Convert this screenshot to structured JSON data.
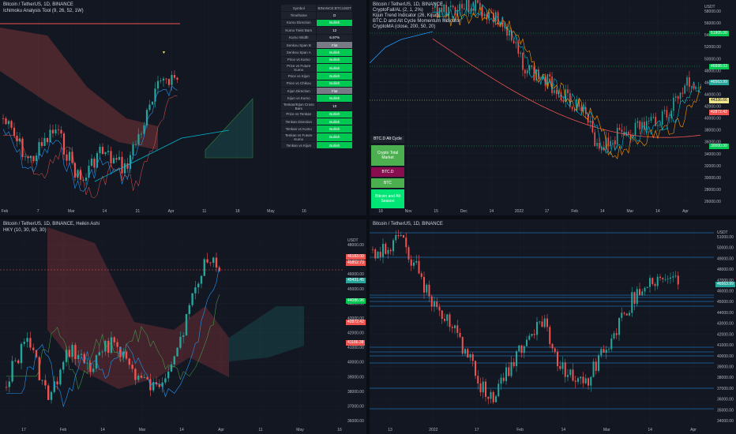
{
  "colors": {
    "up": "#26a69a",
    "down": "#ef5350",
    "bg": "#131722",
    "grid": "#1e222d",
    "text": "#b2b5be",
    "green": "#00c853",
    "red": "#f23645",
    "gray": "#787b86",
    "blue": "#2962ff",
    "cyan": "#00bcd4"
  },
  "panes": {
    "tl": {
      "title_lines": [
        "Bitcoin / TetherUS, 1D, BINANCE",
        "Ichimoku Analysis Tool (9, 26, 52, 1W)"
      ],
      "x_labels": [
        "Feb",
        "7",
        "Mar",
        "14",
        "21",
        "Apr",
        "11",
        "18",
        "May",
        "16"
      ],
      "table": {
        "header": [
          "Symbol",
          "BINANCE:BTCUSDT"
        ],
        "rows": [
          {
            "k": "Timeframe",
            "v": "D",
            "c": "#1e222d"
          },
          {
            "k": "Kumo Direction",
            "v": "Bullish",
            "c": "#00c853"
          },
          {
            "k": "Kumo Twist Bars",
            "v": "12",
            "c": "#1e222d"
          },
          {
            "k": "Kumo Width",
            "v": "6.97%",
            "c": "#1e222d"
          },
          {
            "k": "Senkou Span B",
            "v": "Flat",
            "c": "#787b86"
          },
          {
            "k": "Senkou Span A",
            "v": "Bullish",
            "c": "#00c853"
          },
          {
            "k": "Price vs Kumo",
            "v": "Bullish",
            "c": "#00c853"
          },
          {
            "k": "Price vs Future Kumo",
            "v": "Bullish",
            "c": "#00c853"
          },
          {
            "k": "Price vs Kijun",
            "v": "Bullish",
            "c": "#00c853"
          },
          {
            "k": "Price vs Chikou",
            "v": "Bullish",
            "c": "#00c853"
          },
          {
            "k": "Kijun Direction",
            "v": "Flat",
            "c": "#787b86"
          },
          {
            "k": "Kijun vs Kumo",
            "v": "Bullish",
            "c": "#00c853"
          },
          {
            "k": "Tenkan/Kijun Cross Bars",
            "v": "10",
            "c": "#1e222d"
          },
          {
            "k": "Price vs Tenkan",
            "v": "Bullish",
            "c": "#00c853"
          },
          {
            "k": "Tenkan Direction",
            "v": "Bullish",
            "c": "#00c853"
          },
          {
            "k": "Tenkan vs Kumo",
            "v": "Bullish",
            "c": "#00c853"
          },
          {
            "k": "Tenkan vs Future Kumo",
            "v": "Bullish",
            "c": "#00c853"
          },
          {
            "k": "Tenkan vs Kijun",
            "v": "Bullish",
            "c": "#00c853"
          }
        ]
      }
    },
    "tr": {
      "title_lines": [
        "Bitcoin / TetherUS, 1D, BINANCE",
        "CryptoFall/AL (2, 1, 2%)",
        "Kijun Trend Indicator (26, Kijun)",
        "BTC.D and Alt Cycle Momentum Indicator",
        "CryptoMA (close, 200, 50, 20)"
      ],
      "y_unit": "USDT",
      "y_labels": [
        "58000.00",
        "56000.00",
        "54000.00",
        "52000.00",
        "50000.00",
        "48000.00",
        "46000.00",
        "44000.00",
        "42000.00",
        "40000.00",
        "38000.00",
        "36000.00",
        "34000.00",
        "32000.00",
        "30000.00",
        "28000.00",
        "26000.00"
      ],
      "x_labels": [
        "18",
        "Nov",
        "15",
        "Dec",
        "14",
        "2022",
        "17",
        "Feb",
        "14",
        "Mar",
        "14",
        "Apr"
      ],
      "tags": [
        {
          "t": "51905.00",
          "c": "#00c853",
          "y": 42
        },
        {
          "t": "46888.03",
          "c": "#00c853",
          "y": 84
        },
        {
          "t": "46563.99",
          "c": "#26a69a",
          "y": 104
        },
        {
          "t": "44336.66",
          "c": "#f0e68c",
          "y": 127
        },
        {
          "t": "42872.42",
          "c": "#ef5350",
          "y": 142
        },
        {
          "t": "30000.00",
          "c": "#00c853",
          "y": 185
        }
      ],
      "cycle": {
        "title": "BTC.D Alt Cycle",
        "cells": [
          {
            "t": "Crypto Total Market",
            "c": "#4caf50"
          },
          {
            "t": "BTC.D",
            "c": "#880e4f"
          },
          {
            "t": "BTC",
            "c": "#4caf50"
          },
          {
            "t": "Bitcoin and Alt Season",
            "c": "#00e676"
          }
        ]
      }
    },
    "bl": {
      "title_lines": [
        "Bitcoin / TetherUS, 1D, BINANCE, Heikin Ashi",
        "HKY (10, 30, 60, 30)"
      ],
      "y_unit": "USDT",
      "y_labels": [
        "48000.00",
        "47000.00",
        "46000.00",
        "45000.00",
        "44000.00",
        "43000.00",
        "42000.00",
        "41000.00",
        "40000.00",
        "39000.00",
        "38000.00",
        "37000.00",
        "36000.00"
      ],
      "x_labels": [
        "17",
        "Feb",
        "14",
        "Mar",
        "14",
        "Apr",
        "11",
        "May",
        "16"
      ],
      "tags": [
        {
          "t": "46183.00",
          "c": "#ef5350",
          "y": 325
        },
        {
          "t": "45852.73",
          "c": "#ef5350",
          "y": 333
        },
        {
          "t": "45431.45",
          "c": "#26a69a",
          "y": 355
        },
        {
          "t": "44086.96",
          "c": "#00c853",
          "y": 381
        },
        {
          "t": "42872.42",
          "c": "#ef5350",
          "y": 408
        },
        {
          "t": "41186.38",
          "c": "#ef5350",
          "y": 434
        }
      ]
    },
    "br": {
      "title_lines": [
        "Bitcoin / TetherUS, 1D, BINANCE"
      ],
      "y_unit": "USDT",
      "y_labels": [
        "51000.00",
        "50000.00",
        "49000.00",
        "48000.00",
        "47000.00",
        "46000.00",
        "45000.00",
        "44000.00",
        "43000.00",
        "42000.00",
        "41000.00",
        "40000.00",
        "39000.00",
        "38000.00",
        "37000.00",
        "36000.00",
        "35000.00",
        "34000.00"
      ],
      "x_labels": [
        "13",
        "2022",
        "17",
        "Feb",
        "14",
        "Mar",
        "14",
        "Apr"
      ],
      "tags": [
        {
          "t": "46563.99",
          "c": "#26a69a",
          "y": 360
        }
      ]
    }
  }
}
